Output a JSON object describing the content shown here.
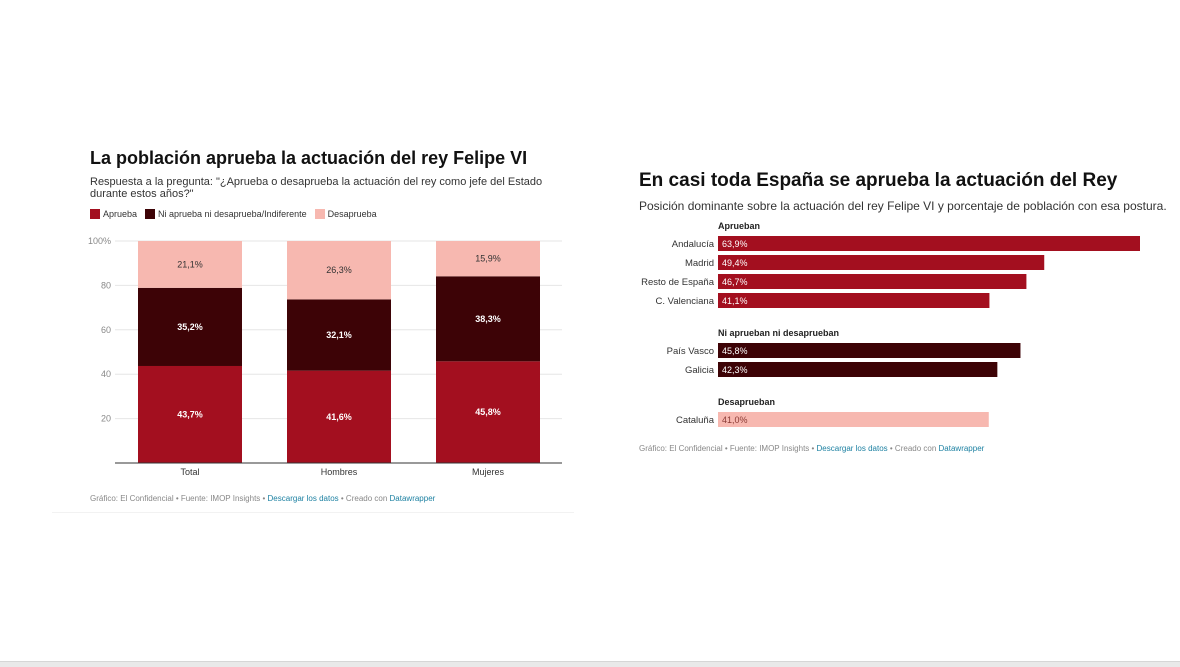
{
  "colors": {
    "aprueba": "#a30f1f",
    "ni": "#3d0306",
    "desaprueba": "#f7b8b0",
    "link": "#1d81a2",
    "grid": "#e6e6e6"
  },
  "left": {
    "title": "La población aprueba la actuación del rey Felipe VI",
    "subtitle": "Respuesta a la pregunta: \"¿Aprueba o desaprueba la actuación del rey como jefe del Estado durante estos años?\"",
    "legend": [
      "Aprueba",
      "Ni aprueba ni desaprueba/Indiferente",
      "Desaprueba"
    ],
    "footer": {
      "prefix": "Gráfico: El Confidencial • Fuente: IMOP Insights • ",
      "download": "Descargar los datos",
      "middle": " • Creado con ",
      "tool": "Datawrapper"
    }
  },
  "right": {
    "title": "En casi toda España se aprueba la actuación del Rey",
    "subtitle": "Posición dominante sobre la actuación del rey Felipe VI y porcentaje de población con esa postura.",
    "footer": {
      "prefix": "Gráfico: El Confidencial • Fuente: IMOP Insights • ",
      "download": "Descargar los datos",
      "middle": " • Creado con ",
      "tool": "Datawrapper"
    }
  },
  "chart_data": [
    {
      "type": "bar",
      "stacked": true,
      "title": "La población aprueba la actuación del rey Felipe VI",
      "categories": [
        "Total",
        "Hombres",
        "Mujeres"
      ],
      "series": [
        {
          "name": "Aprueba",
          "values": [
            43.7,
            41.6,
            45.8
          ],
          "labels": [
            "43,7%",
            "41,6%",
            "45,8%"
          ]
        },
        {
          "name": "Ni aprueba ni desaprueba/Indiferente",
          "values": [
            35.2,
            32.1,
            38.3
          ],
          "labels": [
            "35,2%",
            "32,1%",
            "38,3%"
          ]
        },
        {
          "name": "Desaprueba",
          "values": [
            21.1,
            26.3,
            15.9
          ],
          "labels": [
            "21,1%",
            "26,3%",
            "15,9%"
          ]
        }
      ],
      "ylim": [
        0,
        100
      ],
      "yticks": [
        20,
        40,
        60,
        80,
        100
      ],
      "ytick_labels": [
        "20",
        "40",
        "60",
        "80",
        "100%"
      ],
      "grid": true,
      "legend": "top-left"
    },
    {
      "type": "bar",
      "orientation": "horizontal",
      "title": "En casi toda España se aprueba la actuación del Rey",
      "xlim": [
        0,
        63.9
      ],
      "groups": [
        {
          "name": "Aprueban",
          "series": "aprueba",
          "items": [
            {
              "label": "Andalucía",
              "value": 63.9,
              "text": "63,9%"
            },
            {
              "label": "Madrid",
              "value": 49.4,
              "text": "49,4%"
            },
            {
              "label": "Resto de España",
              "value": 46.7,
              "text": "46,7%"
            },
            {
              "label": "C. Valenciana",
              "value": 41.1,
              "text": "41,1%"
            }
          ]
        },
        {
          "name": "Ni aprueban ni desaprueban",
          "series": "ni",
          "items": [
            {
              "label": "País Vasco",
              "value": 45.8,
              "text": "45,8%"
            },
            {
              "label": "Galicia",
              "value": 42.3,
              "text": "42,3%"
            }
          ]
        },
        {
          "name": "Desaprueban",
          "series": "desaprueba",
          "items": [
            {
              "label": "Cataluña",
              "value": 41.0,
              "text": "41,0%"
            }
          ]
        }
      ]
    }
  ]
}
